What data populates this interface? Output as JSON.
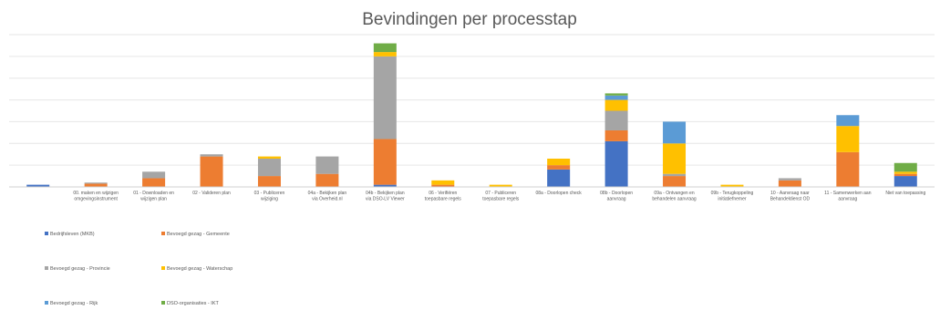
{
  "chart_data": {
    "type": "bar",
    "stacked": true,
    "title": "Bevindingen per processtap",
    "grid": true,
    "legend_position": "bottom-left",
    "categories": [
      "",
      "00. maken en wijzigen omgevingsinstrument",
      "01 - Downloaden en wijzigen plan",
      "02 - Valideren plan",
      "03 - Publiceren wijziging",
      "04a - Bekijken plan via Overheid.nl",
      "04b - Bekijken plan via DSO-LV Viewer",
      "06 - Verifiëren toepasbare regels",
      "07 - Publiceren toepasbare regels",
      "08a - Doorlopen check",
      "08b - Doorlopen aanvraag",
      "09a - Ontvangen en behandelen aanvraag",
      "09b - Terugkoppeling initiatiefnemer",
      "10 - Aanvraag naar Behandeldienst OD",
      "11 - Samenwerken aan aanvraag",
      "Niet van toepassing"
    ],
    "series": [
      {
        "name": "Bedrijfsleven (MKB)",
        "color": "#4472C4",
        "values": [
          1,
          0,
          0,
          0,
          0,
          0,
          1,
          0,
          0,
          8,
          21,
          0,
          0,
          0,
          0,
          5
        ]
      },
      {
        "name": "Bevoegd gezag - Gemeente",
        "color": "#ED7D31",
        "values": [
          0,
          1.5,
          4,
          14,
          5,
          6,
          21,
          1,
          0,
          2,
          5,
          5,
          0,
          3,
          16,
          1
        ]
      },
      {
        "name": "Bevoegd gezag - Provincie",
        "color": "#A5A5A5",
        "values": [
          0,
          0.5,
          3,
          1,
          8,
          8,
          38,
          0,
          0,
          0,
          9,
          1,
          0,
          1,
          0,
          0
        ]
      },
      {
        "name": "Bevoegd gezag - Waterschap",
        "color": "#FFC000",
        "values": [
          0,
          0,
          0,
          0,
          1,
          0,
          2,
          2,
          1,
          3,
          5,
          14,
          1,
          0,
          12,
          1
        ]
      },
      {
        "name": "Bevoegd gezag - Rijk",
        "color": "#5B9BD5",
        "values": [
          0,
          0,
          0,
          0,
          0,
          0,
          0,
          0,
          0,
          0,
          2,
          10,
          0,
          0,
          5,
          0
        ]
      },
      {
        "name": "DSO-organisaties - IKT",
        "color": "#70AD47",
        "values": [
          0,
          0,
          0,
          0,
          0,
          0,
          4,
          0,
          0,
          0,
          1,
          0,
          0,
          0,
          0,
          4
        ]
      }
    ],
    "ylim": [
      0,
      70
    ]
  }
}
